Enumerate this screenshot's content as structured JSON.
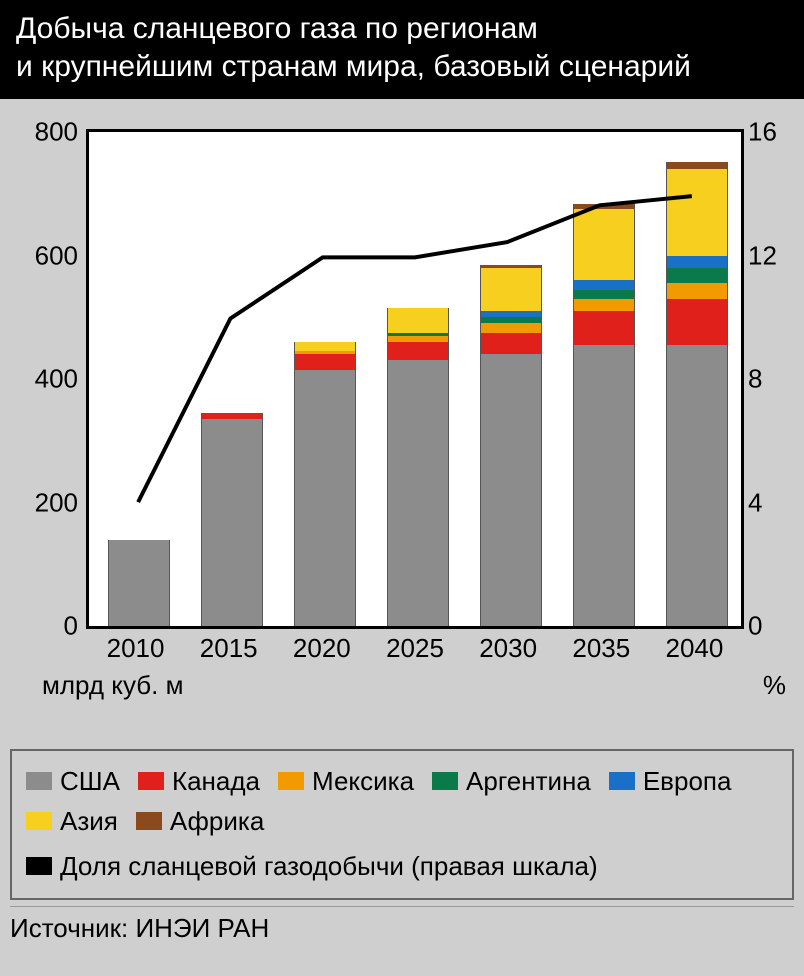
{
  "title": {
    "line1": "Добыча сланцевого газа по регионам",
    "line2": "и крупнейшим странам мира, базовый сценарий"
  },
  "chart": {
    "type": "stacked-bar+line",
    "categories": [
      "2010",
      "2015",
      "2020",
      "2025",
      "2030",
      "2035",
      "2040"
    ],
    "y_left": {
      "min": 0,
      "max": 800,
      "ticks": [
        0,
        200,
        400,
        600,
        800
      ],
      "label": "млрд куб. м"
    },
    "y_right": {
      "min": 0,
      "max": 16,
      "ticks": [
        0,
        4,
        8,
        12,
        16
      ],
      "label": "%"
    },
    "series": [
      {
        "key": "usa",
        "label": "США",
        "color": "#8c8c8c"
      },
      {
        "key": "canada",
        "label": "Канада",
        "color": "#e0201b"
      },
      {
        "key": "mexico",
        "label": "Мексика",
        "color": "#f29b00"
      },
      {
        "key": "argentina",
        "label": "Аргентина",
        "color": "#0a7a4b"
      },
      {
        "key": "europe",
        "label": "Европа",
        "color": "#1a70c7"
      },
      {
        "key": "asia",
        "label": "Азия",
        "color": "#f7cf1f"
      },
      {
        "key": "africa",
        "label": "Африка",
        "color": "#8a4a1e"
      }
    ],
    "stacks": [
      {
        "usa": 140,
        "canada": 0,
        "mexico": 0,
        "argentina": 0,
        "europe": 0,
        "asia": 0,
        "africa": 0
      },
      {
        "usa": 335,
        "canada": 10,
        "mexico": 0,
        "argentina": 0,
        "europe": 0,
        "asia": 0,
        "africa": 0
      },
      {
        "usa": 415,
        "canada": 25,
        "mexico": 5,
        "argentina": 0,
        "europe": 0,
        "asia": 15,
        "africa": 0
      },
      {
        "usa": 430,
        "canada": 30,
        "mexico": 10,
        "argentina": 5,
        "europe": 0,
        "asia": 40,
        "africa": 0
      },
      {
        "usa": 440,
        "canada": 35,
        "mexico": 15,
        "argentina": 10,
        "europe": 10,
        "asia": 70,
        "africa": 5
      },
      {
        "usa": 455,
        "canada": 55,
        "mexico": 20,
        "argentina": 15,
        "europe": 15,
        "asia": 115,
        "africa": 8
      },
      {
        "usa": 455,
        "canada": 75,
        "mexico": 25,
        "argentina": 25,
        "europe": 20,
        "asia": 140,
        "africa": 12
      }
    ],
    "line": {
      "label": "Доля сланцевой газодобычи (правая шкала)",
      "color": "#000000",
      "width": 4,
      "values": [
        4.0,
        10.0,
        12.0,
        12.0,
        12.5,
        13.7,
        14.0
      ]
    },
    "background_color": "#ffffff",
    "page_background": "#cfcfcf",
    "axis_fontsize": 26,
    "title_fontsize": 30
  },
  "source": {
    "prefix": "Источник:",
    "text": "ИНЭИ РАН"
  }
}
